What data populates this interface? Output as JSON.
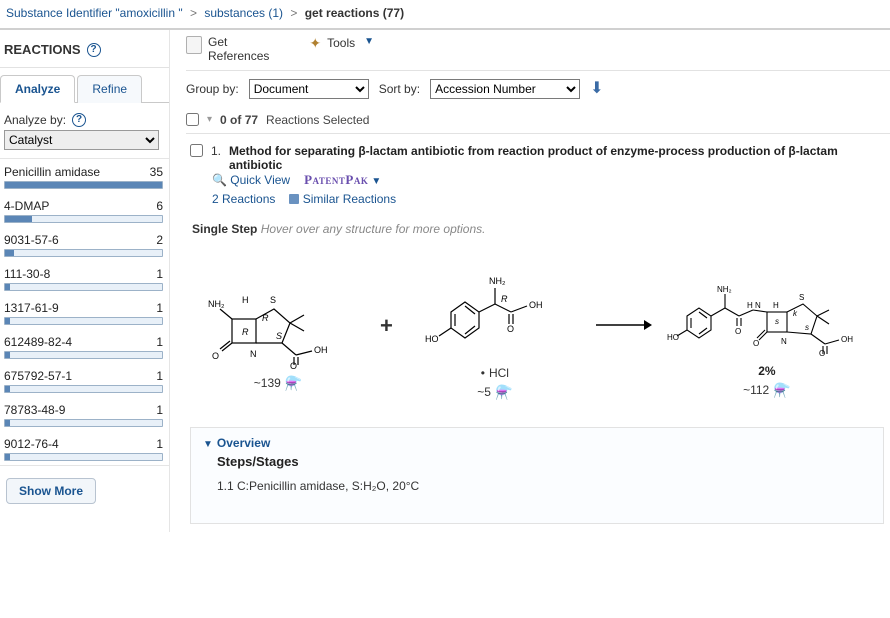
{
  "breadcrumb": {
    "a": "Substance Identifier \"amoxicillin \"",
    "b": "substances (1)",
    "c": "get reactions (77)"
  },
  "left": {
    "header": "REACTIONS",
    "tab_analyze": "Analyze",
    "tab_refine": "Refine",
    "analyze_by_label": "Analyze by:",
    "analyze_by_value": "Catalyst",
    "show_more": "Show More",
    "max_count": 35,
    "facets": [
      {
        "label": "Penicillin amidase",
        "count": 35
      },
      {
        "label": "4-DMAP",
        "count": 6
      },
      {
        "label": "9031-57-6",
        "count": 2
      },
      {
        "label": "111-30-8",
        "count": 1
      },
      {
        "label": "1317-61-9",
        "count": 1
      },
      {
        "label": "612489-82-4",
        "count": 1
      },
      {
        "label": "675792-57-1",
        "count": 1
      },
      {
        "label": "78783-48-9",
        "count": 1
      },
      {
        "label": "9012-76-4",
        "count": 1
      }
    ]
  },
  "toolbar": {
    "get_refs_a": "Get",
    "get_refs_b": "References",
    "tools": "Tools"
  },
  "filters": {
    "group_by_label": "Group by:",
    "group_by_value": "Document",
    "sort_by_label": "Sort by:",
    "sort_by_value": "Accession Number"
  },
  "selection": {
    "text_a": "0 of 77",
    "text_b": "Reactions Selected"
  },
  "result1": {
    "index": "1.",
    "title": "Method for separating β-lactam antibiotic from reaction product of enzyme-process production of β-lactam antibiotic",
    "quick_view": "Quick View",
    "patentpak": "PatentPak",
    "reactions_link": "2 Reactions",
    "similar_link": "Similar Reactions",
    "single_step": "Single Step",
    "hover_hint": "Hover over any structure for more options.",
    "reactant1_count": "~139",
    "reactant2_hcl": "HCl",
    "reactant2_count": "~5",
    "product_yield": "2%",
    "product_count": "~112"
  },
  "overview": {
    "toggle": "Overview",
    "steps_header": "Steps/Stages",
    "line": "1.1  C:Penicillin amidase, S:H₂O, 20°C"
  },
  "colors": {
    "link": "#1a5490",
    "bar_fill": "#5b86b6",
    "bar_bg": "#e8f0f8",
    "bar_border": "#9cb2c8",
    "muted": "#888888"
  }
}
